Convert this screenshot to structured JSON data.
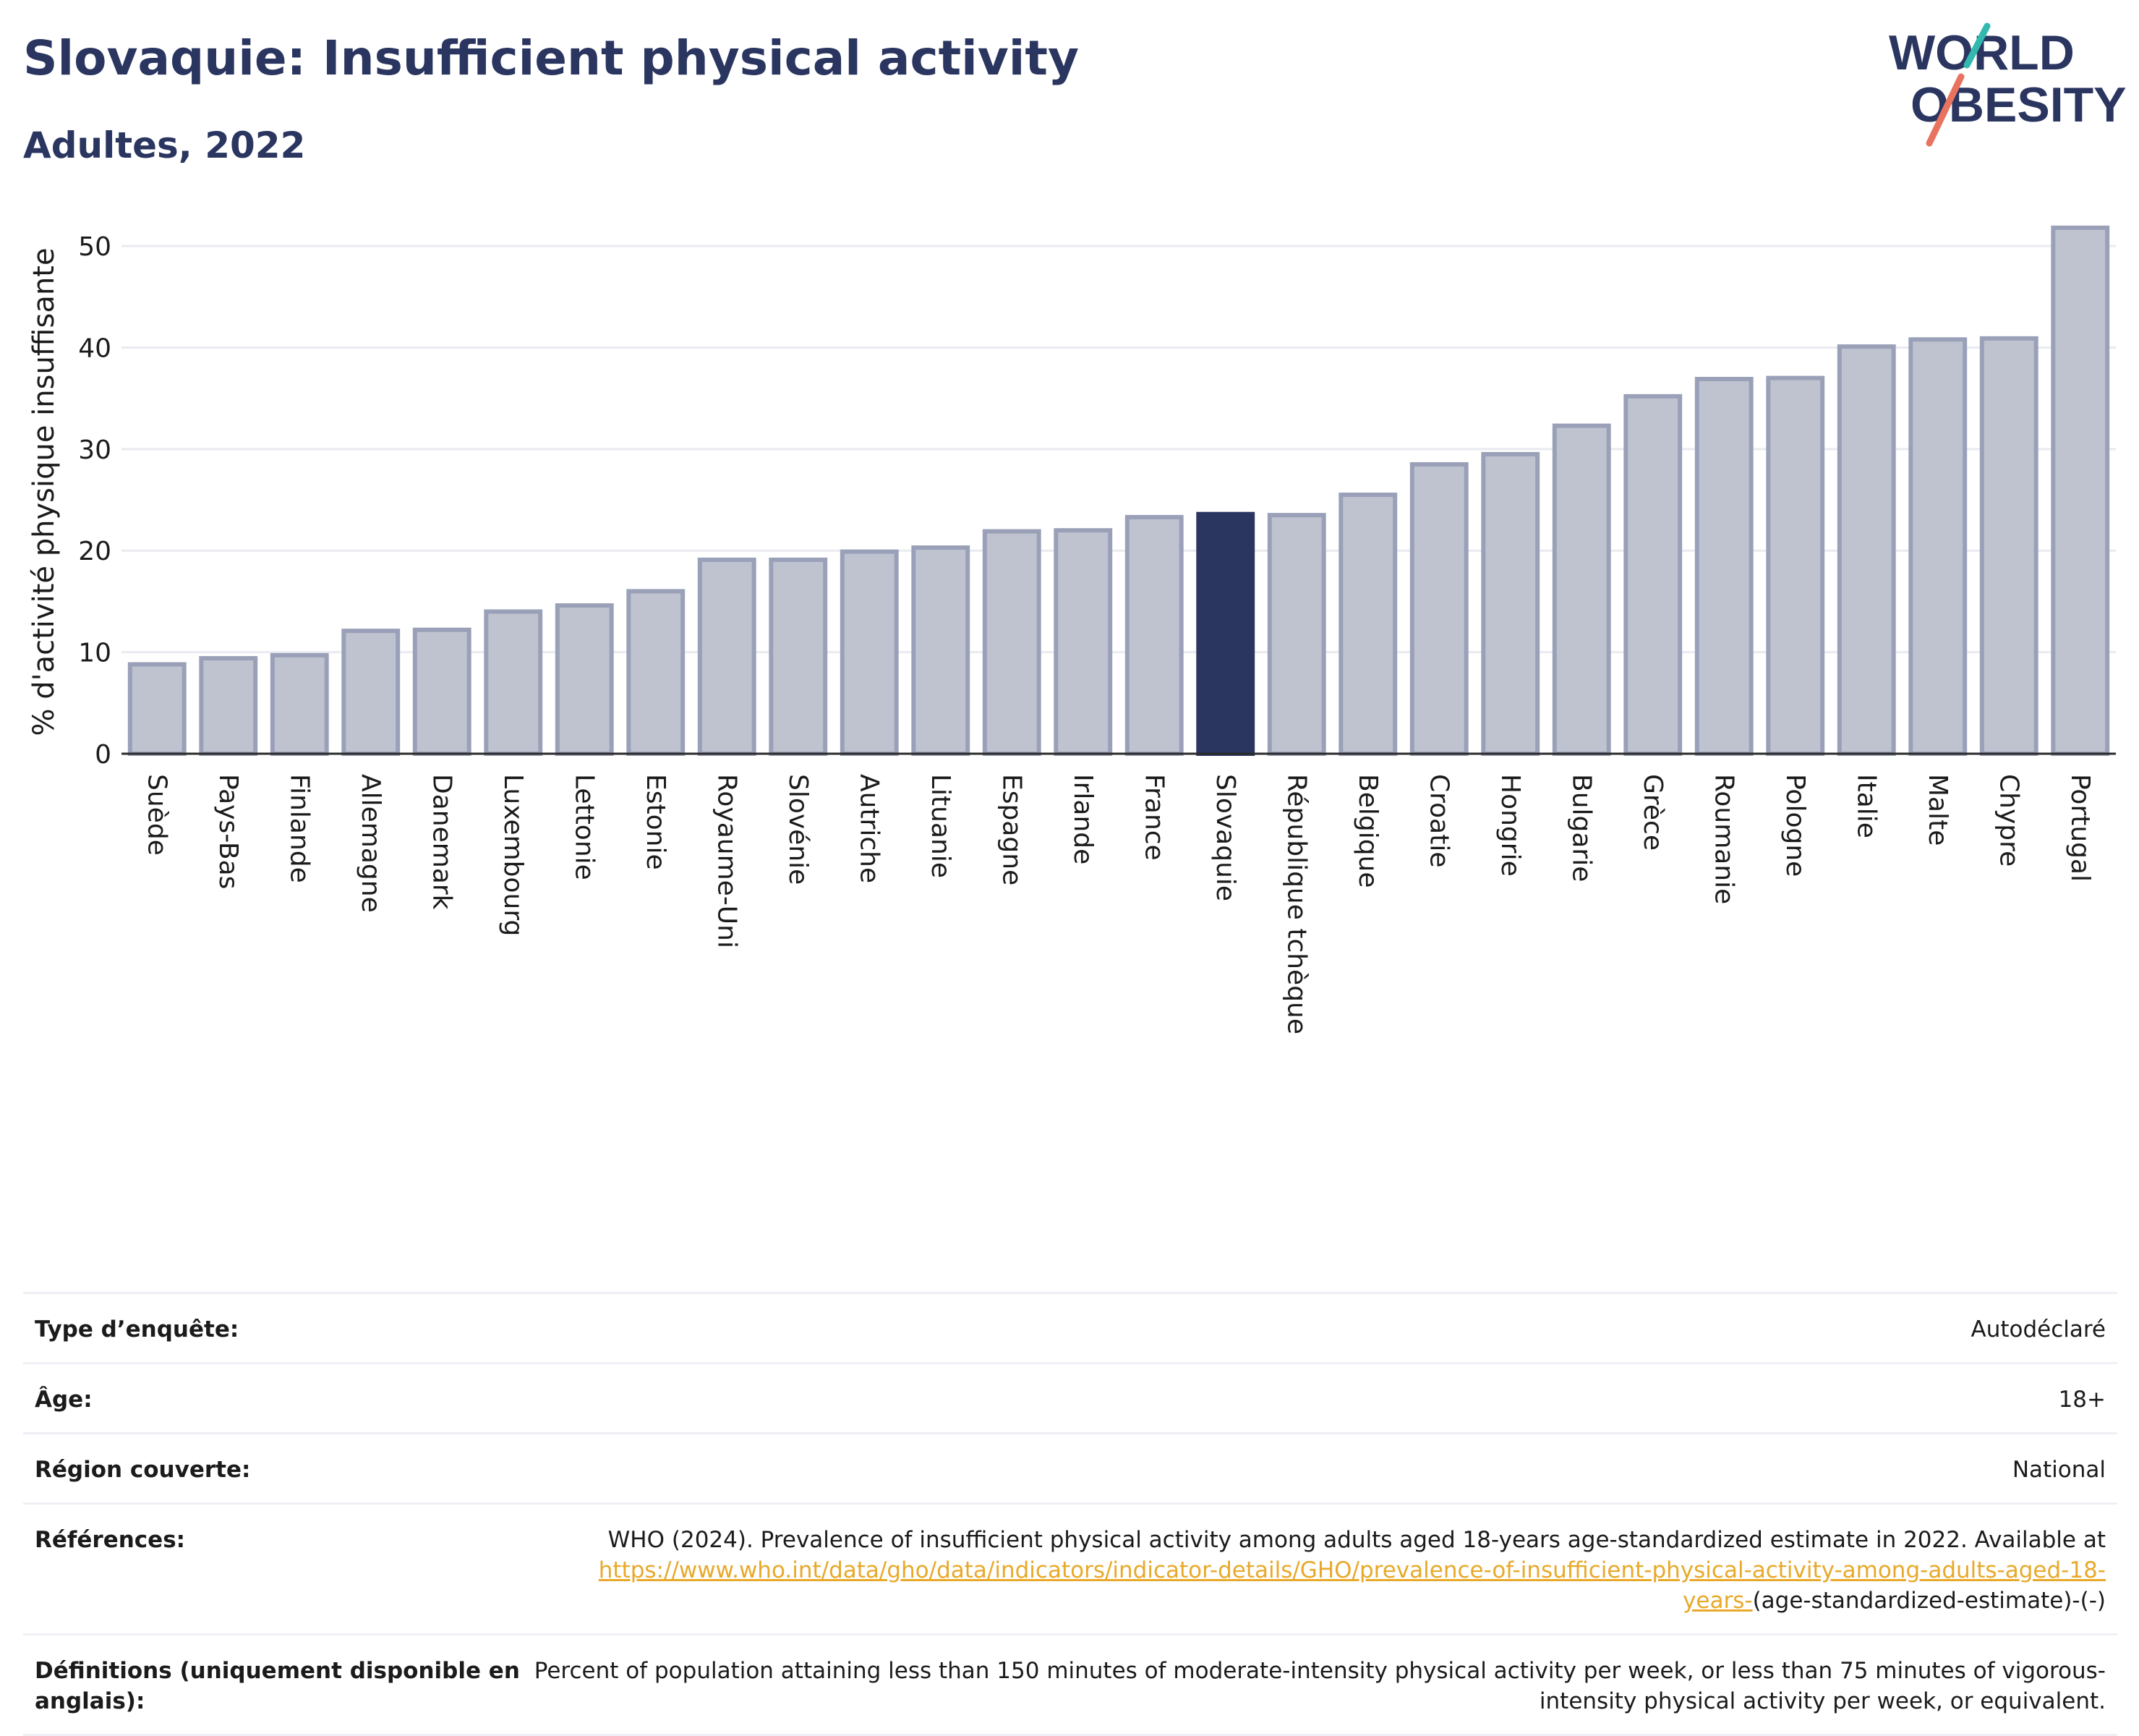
{
  "header": {
    "title": "Slovaquie: Insufficient physical activity",
    "subtitle": "Adultes, 2022"
  },
  "logo": {
    "line1": "WORLD",
    "line2": "OBESITY"
  },
  "colors": {
    "bar": "#bfc3d0",
    "bar_border": "#9aa0b8",
    "highlight": "#2a3560",
    "title": "#2a3560",
    "link": "#e8a92a",
    "logo_teal": "#33b8b0",
    "logo_coral": "#e8735f"
  },
  "chart_data": {
    "type": "bar",
    "ylabel": "% d'activité physique insuffisante",
    "ylim": [
      0,
      53
    ],
    "yticks": [
      0,
      10,
      20,
      30,
      40,
      50
    ],
    "grid": true,
    "highlight": "Slovaquie",
    "categories": [
      "Suède",
      "Pays-Bas",
      "Finlande",
      "Allemagne",
      "Danemark",
      "Luxembourg",
      "Lettonie",
      "Estonie",
      "Royaume-Uni",
      "Slovénie",
      "Autriche",
      "Lituanie",
      "Espagne",
      "Irlande",
      "France",
      "Slovaquie",
      "République tchèque",
      "Belgique",
      "Croatie",
      "Hongrie",
      "Bulgarie",
      "Grèce",
      "Roumanie",
      "Pologne",
      "Italie",
      "Malte",
      "Chypre",
      "Portugal"
    ],
    "values": [
      8.8,
      9.4,
      9.7,
      12.1,
      12.2,
      14.0,
      14.6,
      16.0,
      19.1,
      19.1,
      19.9,
      20.3,
      21.9,
      22.0,
      23.3,
      23.6,
      23.5,
      25.5,
      28.5,
      29.5,
      32.3,
      35.2,
      36.9,
      37.0,
      40.1,
      40.8,
      40.9,
      51.8
    ]
  },
  "info": {
    "survey_type": {
      "label": "Type d’enquête:",
      "value": "Autodéclaré"
    },
    "age": {
      "label": "Âge:",
      "value": "18+"
    },
    "region": {
      "label": "Région couverte:",
      "value": "National"
    },
    "references": {
      "label": "Références:",
      "text": "WHO (2024). Prevalence of insufficient physical activity among adults aged 18-years age-standardized estimate in 2022. Available at",
      "link": "https://www.who.int/data/gho/data/indicators/indicator-details/GHO/prevalence-of-insufficient-physical-activity-among-adults-aged-18-years-",
      "link_suffix": "(age-standardized-estimate)-(-)"
    },
    "definitions": {
      "label": "Définitions (uniquement disponible en anglais):",
      "value": "Percent of population attaining less than 150 minutes of moderate-intensity physical activity per week, or less than 75 minutes of vigorous-intensity physical activity per week, or equivalent."
    }
  }
}
